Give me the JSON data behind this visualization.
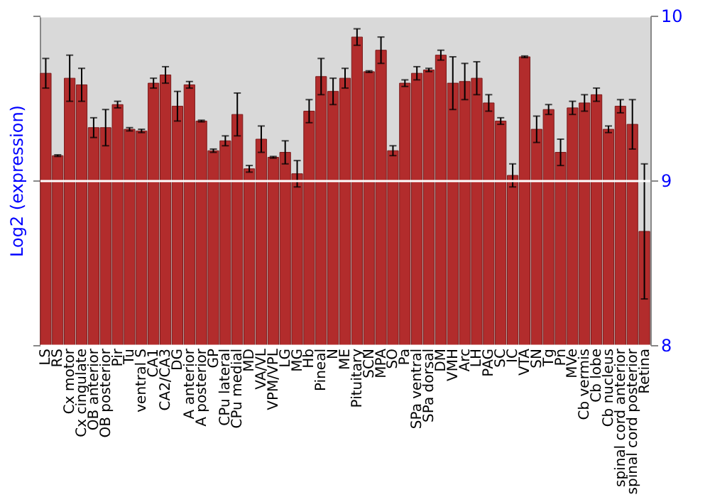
{
  "chart_data": {
    "type": "bar",
    "ylabel": "Log2 (expression)",
    "categories": [
      "LS",
      "RS",
      "Cx motor",
      "Cx cingulate",
      "OB anterior",
      "OB posterior",
      "Pir",
      "Tu",
      "ventral S",
      "CA1",
      "CA2/CA3",
      "DG",
      "A anterior",
      "A posterior",
      "GP",
      "CPu lateral",
      "CPu medial",
      "MD",
      "VA/VL",
      "VPM/VPL",
      "LG",
      "MG",
      "Hb",
      "Pineal",
      "N",
      "ME",
      "Pituitary",
      "SCN",
      "MPA",
      "SO",
      "Pa",
      "SPa ventral",
      "SPa dorsal",
      "DM",
      "VMH",
      "Arc",
      "LH",
      "PAG",
      "SC",
      "IC",
      "VTA",
      "SN",
      "Tg",
      "Pn",
      "MVe",
      "Cb vermis",
      "Cb lobe",
      "Cb nucleus",
      "spinal cord anterior",
      "spinal cord posterior",
      "Retina"
    ],
    "values": [
      9.65,
      9.15,
      9.62,
      9.58,
      9.32,
      9.32,
      9.46,
      9.31,
      9.3,
      9.59,
      9.64,
      9.45,
      9.58,
      9.36,
      9.18,
      9.24,
      9.4,
      9.07,
      9.25,
      9.14,
      9.17,
      9.04,
      9.42,
      9.63,
      9.54,
      9.62,
      9.87,
      9.66,
      9.79,
      9.18,
      9.59,
      9.65,
      9.67,
      9.76,
      9.59,
      9.6,
      9.62,
      9.47,
      9.36,
      9.03,
      9.75,
      9.31,
      9.43,
      9.17,
      9.44,
      9.47,
      9.52,
      9.31,
      9.45,
      9.34,
      8.69
    ],
    "errors": [
      0.09,
      0.005,
      0.14,
      0.1,
      0.06,
      0.11,
      0.02,
      0.01,
      0.01,
      0.03,
      0.05,
      0.09,
      0.02,
      0.005,
      0.01,
      0.03,
      0.13,
      0.02,
      0.08,
      0.005,
      0.07,
      0.08,
      0.07,
      0.11,
      0.08,
      0.06,
      0.05,
      0.005,
      0.08,
      0.03,
      0.02,
      0.04,
      0.01,
      0.03,
      0.16,
      0.11,
      0.1,
      0.05,
      0.02,
      0.07,
      0.005,
      0.08,
      0.03,
      0.08,
      0.04,
      0.05,
      0.04,
      0.02,
      0.04,
      0.15,
      0.41
    ],
    "color": "#b22c2c",
    "ylim": [
      8,
      10
    ],
    "yticks": [
      8,
      9,
      10
    ],
    "grid": "y"
  }
}
